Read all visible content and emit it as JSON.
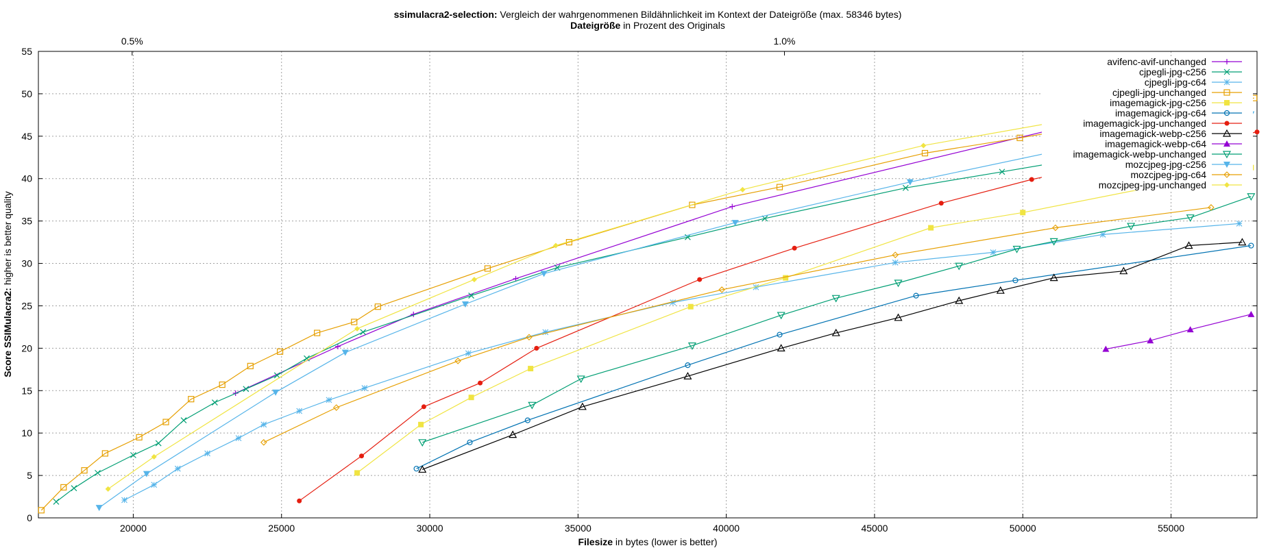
{
  "chart_data": {
    "type": "line",
    "title": {
      "bold": "ssimulacra2-selection:",
      "rest": " Vergleich der wahrgenommenen Bildähnlichkeit im Kontext der Dateigröße (max. 58346 bytes)"
    },
    "subtitle": {
      "bold": "Dateigröße",
      "rest": " in Prozent des Originals"
    },
    "xlabel": {
      "bold": "Filesize",
      "rest": " in bytes (lower is better)"
    },
    "ylabel": {
      "bold": "Score SSIMulacra2:",
      "rest": " higher is better quality"
    },
    "xlim": [
      16800,
      57900
    ],
    "ylim": [
      0,
      55
    ],
    "x_ticks": [
      "20000",
      "25000",
      "30000",
      "35000",
      "40000",
      "45000",
      "50000",
      "55000"
    ],
    "y_ticks": [
      "0",
      "5",
      "10",
      "15",
      "20",
      "25",
      "30",
      "35",
      "40",
      "45",
      "50",
      "55"
    ],
    "x2_ticks": [
      {
        "label": "0.5%",
        "x": 19962
      },
      {
        "label": "1.0%",
        "x": 41962
      }
    ],
    "grid": true,
    "legend_position": "top-right",
    "series": [
      {
        "name": "avifenc-avif-unchanged",
        "color": "#9400d3",
        "marker": "plus",
        "points": [
          [
            23450,
            14.7
          ],
          [
            26900,
            20.2
          ],
          [
            29450,
            24.0
          ],
          [
            32900,
            28.2
          ],
          [
            40200,
            36.7
          ],
          [
            51500,
            46.2
          ]
        ]
      },
      {
        "name": "cjpegli-jpg-c256",
        "color": "#009e73",
        "marker": "x",
        "points": [
          [
            17400,
            1.9
          ],
          [
            18000,
            3.5
          ],
          [
            18800,
            5.3
          ],
          [
            20000,
            7.4
          ],
          [
            20850,
            8.8
          ],
          [
            21700,
            11.5
          ],
          [
            22750,
            13.6
          ],
          [
            23800,
            15.2
          ],
          [
            24850,
            16.8
          ],
          [
            25850,
            18.8
          ],
          [
            27750,
            21.9
          ],
          [
            31400,
            26.2
          ],
          [
            34300,
            29.5
          ],
          [
            38700,
            33.1
          ],
          [
            41300,
            35.3
          ],
          [
            46050,
            38.9
          ],
          [
            49300,
            40.8
          ],
          [
            53500,
            43.3
          ],
          [
            57400,
            45.1
          ]
        ]
      },
      {
        "name": "cjpegli-jpg-c64",
        "color": "#56b4e9",
        "marker": "star",
        "points": [
          [
            19700,
            2.1
          ],
          [
            20700,
            3.9
          ],
          [
            21500,
            5.8
          ],
          [
            22500,
            7.6
          ],
          [
            23550,
            9.4
          ],
          [
            24400,
            11.0
          ],
          [
            25600,
            12.6
          ],
          [
            26600,
            13.9
          ],
          [
            27800,
            15.3
          ],
          [
            31300,
            19.4
          ],
          [
            33900,
            21.9
          ],
          [
            38200,
            25.4
          ],
          [
            41000,
            27.2
          ],
          [
            45700,
            30.1
          ],
          [
            49000,
            31.3
          ],
          [
            52700,
            33.4
          ],
          [
            57300,
            34.7
          ]
        ]
      },
      {
        "name": "cjpegli-jpg-unchanged",
        "color": "#e69f00",
        "marker": "square",
        "points": [
          [
            16900,
            0.9
          ],
          [
            17650,
            3.6
          ],
          [
            18350,
            5.6
          ],
          [
            19050,
            7.6
          ],
          [
            20200,
            9.5
          ],
          [
            21100,
            11.3
          ],
          [
            21950,
            14.0
          ],
          [
            23000,
            15.7
          ],
          [
            23950,
            17.9
          ],
          [
            24950,
            19.6
          ],
          [
            26200,
            21.8
          ],
          [
            27450,
            23.1
          ],
          [
            28250,
            24.9
          ],
          [
            31950,
            29.4
          ],
          [
            34700,
            32.5
          ],
          [
            38850,
            36.9
          ],
          [
            41800,
            39.0
          ],
          [
            46700,
            43.0
          ],
          [
            49900,
            44.8
          ],
          [
            57800,
            49.5
          ]
        ]
      },
      {
        "name": "imagemagick-jpg-c256",
        "color": "#f0e442",
        "marker": "filled-square",
        "points": [
          [
            27550,
            5.3
          ],
          [
            29700,
            11.0
          ],
          [
            31400,
            14.2
          ],
          [
            33400,
            17.6
          ],
          [
            38800,
            24.9
          ],
          [
            42000,
            28.3
          ],
          [
            46900,
            34.2
          ],
          [
            50000,
            36.0
          ],
          [
            57700,
            41.3
          ]
        ]
      },
      {
        "name": "imagemagick-jpg-c64",
        "color": "#0072b2",
        "marker": "circle",
        "points": [
          [
            29550,
            5.8
          ],
          [
            31350,
            8.9
          ],
          [
            33300,
            11.5
          ],
          [
            38700,
            18.0
          ],
          [
            41800,
            21.6
          ],
          [
            46400,
            26.2
          ],
          [
            49750,
            28.0
          ],
          [
            57700,
            32.1
          ]
        ]
      },
      {
        "name": "imagemagick-jpg-unchanged",
        "color": "#e51e10",
        "marker": "filled-circle",
        "points": [
          [
            25600,
            2.0
          ],
          [
            27700,
            7.3
          ],
          [
            29800,
            13.1
          ],
          [
            31700,
            15.9
          ],
          [
            33600,
            20.0
          ],
          [
            39100,
            28.1
          ],
          [
            42300,
            31.8
          ],
          [
            47250,
            37.1
          ],
          [
            50300,
            39.9
          ],
          [
            57900,
            45.5
          ]
        ]
      },
      {
        "name": "imagemagick-webp-c256",
        "color": "#000000",
        "marker": "triangle",
        "points": [
          [
            29750,
            5.7
          ],
          [
            32800,
            9.8
          ],
          [
            35150,
            13.1
          ],
          [
            38700,
            16.7
          ],
          [
            41850,
            20.0
          ],
          [
            43700,
            21.8
          ],
          [
            45800,
            23.6
          ],
          [
            47850,
            25.6
          ],
          [
            49250,
            26.8
          ],
          [
            51050,
            28.3
          ],
          [
            53400,
            29.1
          ],
          [
            55600,
            32.1
          ],
          [
            57400,
            32.5
          ]
        ]
      },
      {
        "name": "imagemagick-webp-c64",
        "color": "#9400d3",
        "marker": "filled-triangle",
        "points": [
          [
            52800,
            19.9
          ],
          [
            54300,
            20.9
          ],
          [
            55650,
            22.2
          ],
          [
            57700,
            24.0
          ]
        ]
      },
      {
        "name": "imagemagick-webp-unchanged",
        "color": "#009e73",
        "marker": "triangle-down",
        "points": [
          [
            29750,
            8.9
          ],
          [
            33450,
            13.3
          ],
          [
            35100,
            16.4
          ],
          [
            38850,
            20.3
          ],
          [
            41850,
            23.9
          ],
          [
            43700,
            25.9
          ],
          [
            45800,
            27.7
          ],
          [
            47850,
            29.7
          ],
          [
            49800,
            31.7
          ],
          [
            51050,
            32.6
          ],
          [
            53650,
            34.4
          ],
          [
            55650,
            35.4
          ],
          [
            57700,
            37.9
          ]
        ]
      },
      {
        "name": "mozcjpeg-jpg-c256",
        "color": "#56b4e9",
        "marker": "filled-triangle-down",
        "points": [
          [
            18850,
            1.2
          ],
          [
            20450,
            5.2
          ],
          [
            24800,
            14.8
          ],
          [
            27150,
            19.5
          ],
          [
            31200,
            25.2
          ],
          [
            33850,
            28.8
          ],
          [
            40300,
            34.8
          ],
          [
            46200,
            39.6
          ],
          [
            51500,
            43.5
          ],
          [
            57700,
            47.6
          ]
        ]
      },
      {
        "name": "mozcjpeg-jpg-c64",
        "color": "#e69f00",
        "marker": "diamond",
        "points": [
          [
            24400,
            8.9
          ],
          [
            26850,
            13.0
          ],
          [
            30950,
            18.5
          ],
          [
            33350,
            21.3
          ],
          [
            39850,
            26.9
          ],
          [
            45700,
            31.0
          ],
          [
            51100,
            34.2
          ],
          [
            56350,
            36.6
          ]
        ]
      },
      {
        "name": "mozcjpeg-jpg-unchanged",
        "color": "#f0e442",
        "marker": "filled-diamond",
        "points": [
          [
            19150,
            3.4
          ],
          [
            20700,
            7.2
          ],
          [
            27550,
            22.3
          ],
          [
            31500,
            28.1
          ],
          [
            34250,
            32.1
          ],
          [
            40550,
            38.7
          ],
          [
            46650,
            43.9
          ],
          [
            57650,
            50.7
          ]
        ]
      }
    ]
  }
}
